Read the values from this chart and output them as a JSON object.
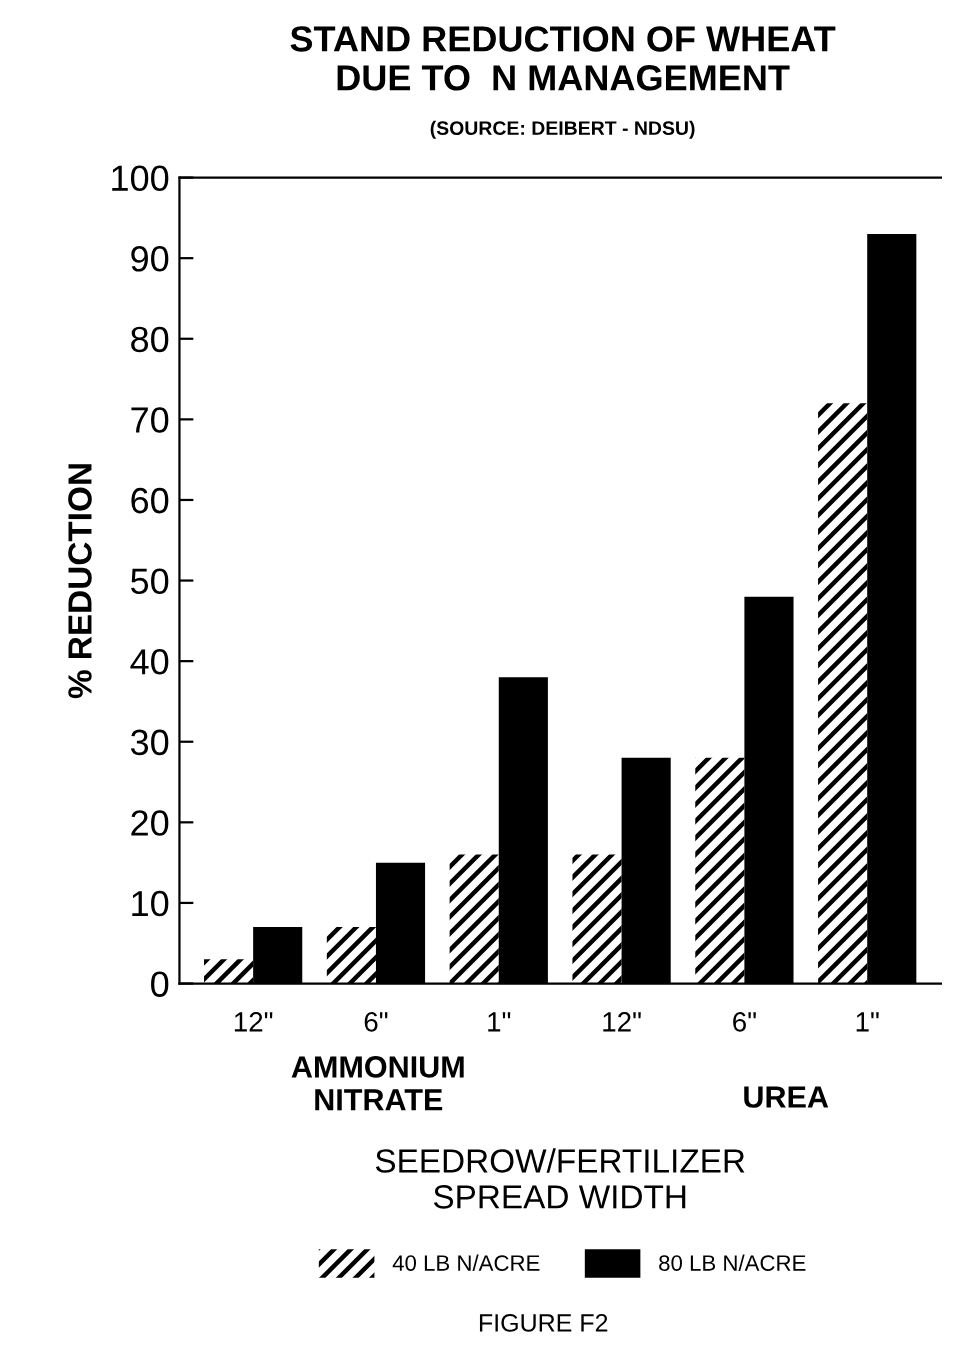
{
  "chart_data": {
    "type": "bar",
    "title": "STAND REDUCTION OF WHEAT\nDUE TO  N MANAGEMENT",
    "subtitle": "(SOURCE: DEIBERT - NDSU)",
    "xlabel": "SEEDROW/FERTILIZER\nSPREAD WIDTH",
    "ylabel": "% REDUCTION",
    "categories": [
      "12\"",
      "6\"",
      "1\"",
      "12\"",
      "6\"",
      "1\""
    ],
    "series": [
      {
        "name": "40 LB N/ACRE",
        "color": "#000000",
        "values": [
          3,
          7,
          16,
          16,
          28,
          72
        ]
      },
      {
        "name": "80 LB N/ACRE",
        "color": "#000000",
        "values": [
          7,
          15,
          38,
          28,
          48,
          93
        ]
      }
    ],
    "annotations": [
      "AMMONIUM\nNITRATE",
      "UREA",
      "FIGURE F2"
    ],
    "ylim": [
      0,
      100
    ],
    "yticks": [
      0,
      10,
      20,
      30,
      40,
      50,
      60,
      70,
      80,
      90,
      100
    ],
    "grid": false,
    "legend": "bottom"
  }
}
